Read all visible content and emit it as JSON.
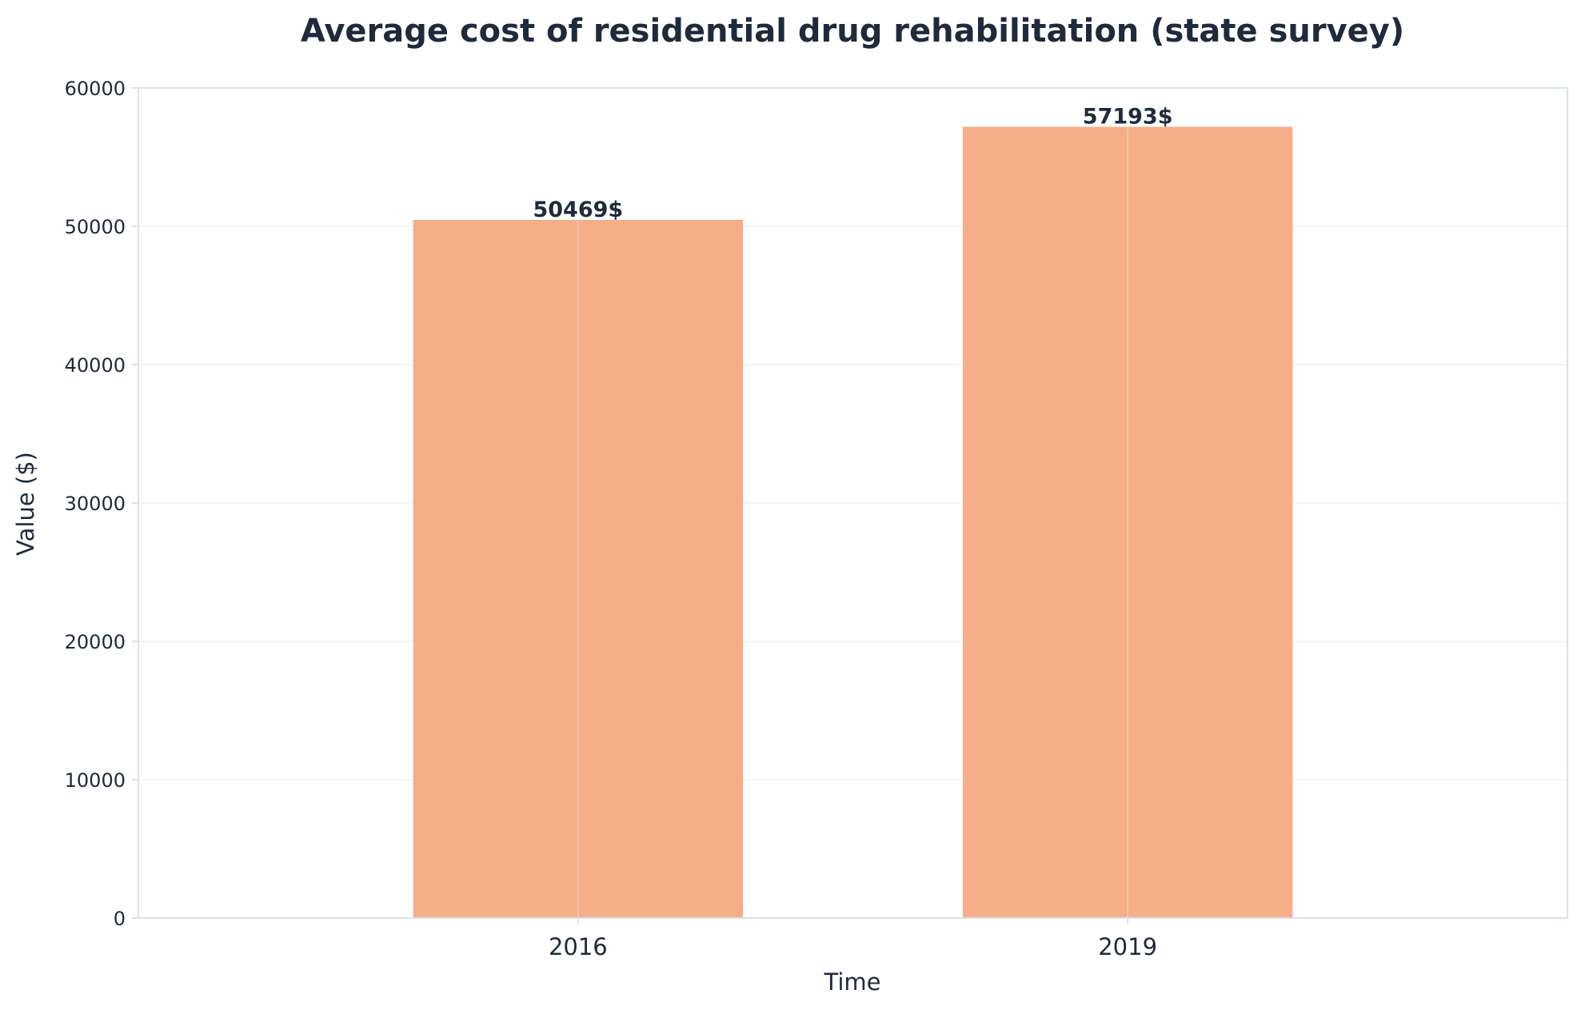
{
  "chart_data": {
    "type": "bar",
    "title": "Average cost of residential drug rehabilitation (state survey)",
    "xlabel": "Time",
    "ylabel": "Value ($)",
    "categories": [
      "2016",
      "2019"
    ],
    "values": [
      50469,
      57193
    ],
    "data_labels": [
      "50469$",
      "57193$"
    ],
    "ylim": [
      0,
      60000
    ],
    "yticks": [
      0,
      10000,
      20000,
      30000,
      40000,
      50000,
      60000
    ],
    "ytick_labels": [
      "0",
      "10000",
      "20000",
      "30000",
      "40000",
      "50000",
      "60000"
    ],
    "grid": true,
    "legend": "none",
    "colors": {
      "bar": "#f5ae88",
      "text": "#1f2a3c",
      "axis": "#d9e2ec",
      "grid": "#eef2f6"
    }
  }
}
